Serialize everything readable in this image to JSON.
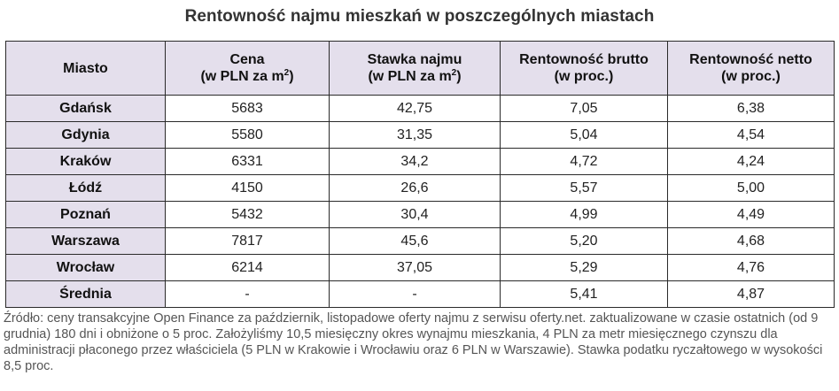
{
  "title": "Rentowność najmu mieszkań w poszczególnych miastach",
  "table": {
    "headers": [
      {
        "line1": "Miasto",
        "line2": "",
        "sup": ""
      },
      {
        "line1": "Cena",
        "line2": "(w PLN za m",
        "sup": "2",
        "close": ")"
      },
      {
        "line1": "Stawka najmu",
        "line2": "(w PLN za m",
        "sup": "2",
        "close": ")"
      },
      {
        "line1": "Rentowność brutto",
        "line2": "(w proc.)",
        "sup": "",
        "close": ""
      },
      {
        "line1": "Rentowność netto",
        "line2": "(w proc.)",
        "sup": "",
        "close": ""
      }
    ],
    "rows": [
      {
        "city": "Gdańsk",
        "price": "5683",
        "rent": "42,75",
        "gross": "7,05",
        "net": "6,38"
      },
      {
        "city": "Gdynia",
        "price": "5580",
        "rent": "31,35",
        "gross": "5,04",
        "net": "4,54"
      },
      {
        "city": "Kraków",
        "price": "6331",
        "rent": "34,2",
        "gross": "4,72",
        "net": "4,24"
      },
      {
        "city": "Łódź",
        "price": "4150",
        "rent": "26,6",
        "gross": "5,57",
        "net": "5,00"
      },
      {
        "city": "Poznań",
        "price": "5432",
        "rent": "30,4",
        "gross": "4,99",
        "net": "4,49"
      },
      {
        "city": "Warszawa",
        "price": "7817",
        "rent": "45,6",
        "gross": "5,20",
        "net": "4,68"
      },
      {
        "city": "Wrocław",
        "price": "6214",
        "rent": "37,05",
        "gross": "5,29",
        "net": "4,76"
      },
      {
        "city": "Średnia",
        "price": "-",
        "rent": "-",
        "gross": "5,41",
        "net": "4,87"
      }
    ]
  },
  "footnote": "Źródło: ceny transakcyjne Open Finance za październik, listopadowe oferty najmu z serwisu oferty.net. zaktualizowane w czasie ostatnich (od 9 grudnia) 180 dni i obniżone o 5 proc. Założyliśmy 10,5 miesięczny okres wynajmu mieszkania, 4 PLN za metr miesięcznego czynszu dla administracji płaconego przez właściciela (5 PLN w Krakowie i Wrocławiu oraz 6 PLN w Warszawie). Stawka podatku ryczałtowego w wysokości 8,5 proc.",
  "colors": {
    "header_background": "#e4dfec",
    "border": "#2a2a2a",
    "footnote_text": "#555555"
  }
}
